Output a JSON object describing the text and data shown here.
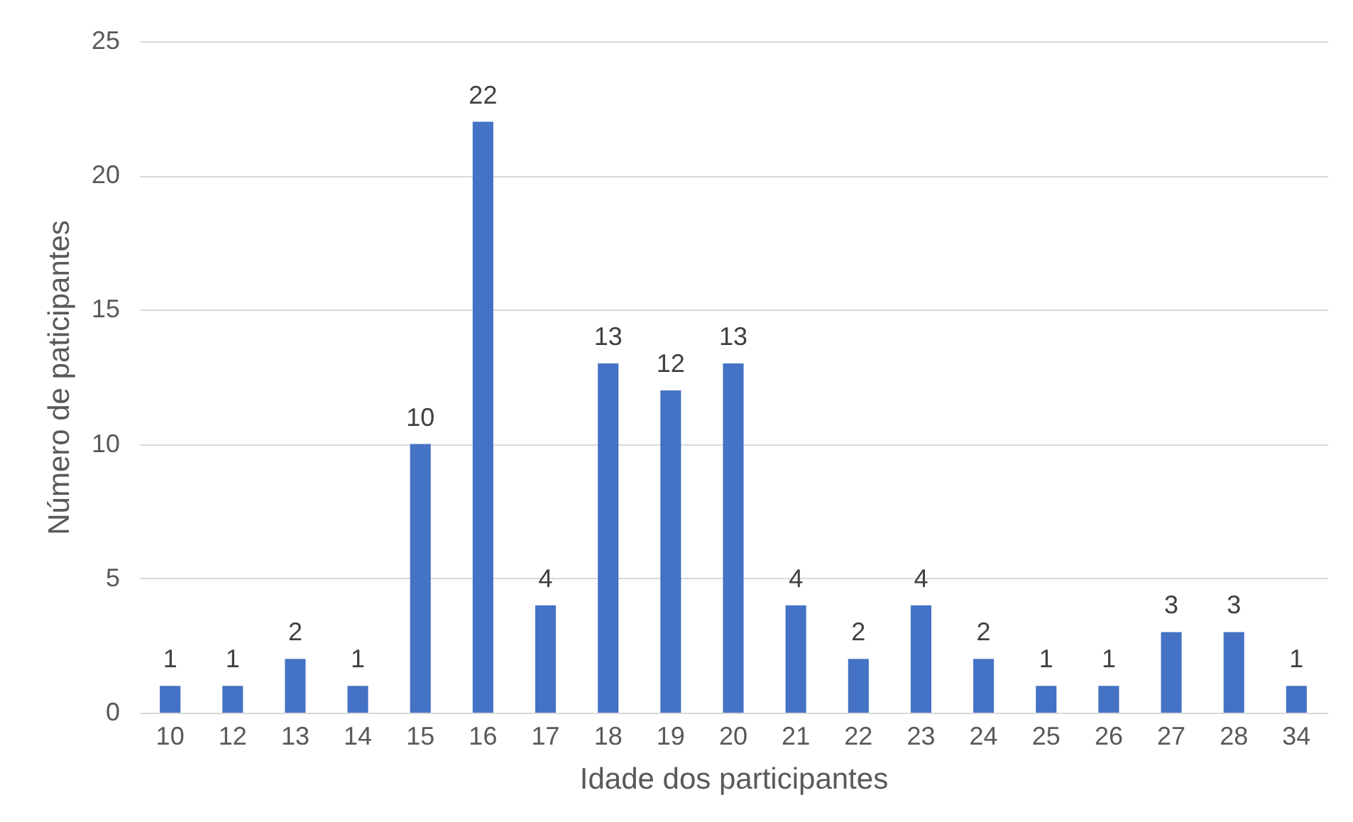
{
  "chart_data": {
    "type": "bar",
    "xlabel": "Idade dos participantes",
    "ylabel": "Número de paticipantes",
    "categories": [
      "10",
      "12",
      "13",
      "14",
      "15",
      "16",
      "17",
      "18",
      "19",
      "20",
      "21",
      "22",
      "23",
      "24",
      "25",
      "26",
      "27",
      "28",
      "34"
    ],
    "values": [
      1,
      1,
      2,
      1,
      10,
      22,
      4,
      13,
      12,
      13,
      4,
      2,
      4,
      2,
      1,
      1,
      3,
      3,
      1
    ],
    "color": "#4472c4",
    "ylim": [
      0,
      25
    ],
    "yticks": [
      0,
      5,
      10,
      15,
      20,
      25
    ],
    "grid": "y",
    "data_labels": true
  }
}
